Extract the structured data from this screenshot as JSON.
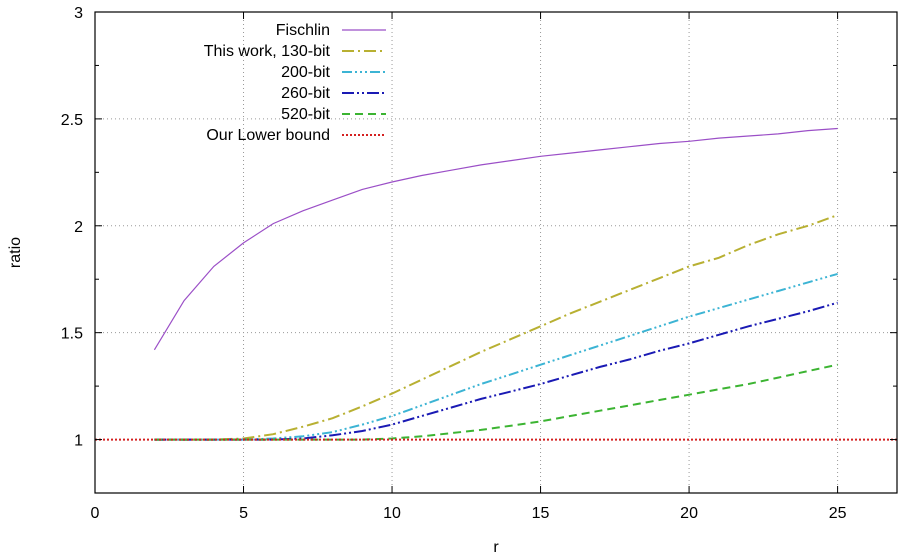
{
  "chart_data": {
    "type": "line",
    "xlabel": "r",
    "ylabel": "ratio",
    "xlim": [
      0,
      27
    ],
    "ylim": [
      0.75,
      3
    ],
    "xticks": [
      0,
      5,
      10,
      15,
      20,
      25
    ],
    "yticks": [
      1,
      1.5,
      2,
      2.5,
      3
    ],
    "grid": true,
    "legend_position": "top-left",
    "series": [
      {
        "name": "Fischlin",
        "color": "#9b4fc7",
        "dash": "solid",
        "x": [
          2,
          3,
          4,
          5,
          6,
          7,
          8,
          9,
          10,
          11,
          12,
          13,
          14,
          15,
          16,
          17,
          18,
          19,
          20,
          21,
          22,
          23,
          24,
          25
        ],
        "y": [
          1.42,
          1.65,
          1.81,
          1.92,
          2.01,
          2.07,
          2.12,
          2.17,
          2.205,
          2.235,
          2.26,
          2.285,
          2.305,
          2.325,
          2.34,
          2.355,
          2.37,
          2.385,
          2.395,
          2.41,
          2.42,
          2.43,
          2.445,
          2.455
        ]
      },
      {
        "name": "This work, 130-bit",
        "color": "#b8b032",
        "dash": "dashdot",
        "x": [
          2,
          3,
          4,
          5,
          6,
          7,
          8,
          9,
          10,
          11,
          12,
          13,
          14,
          15,
          16,
          17,
          18,
          19,
          20,
          21,
          22,
          23,
          24,
          25
        ],
        "y": [
          1.0,
          1.0,
          1.0,
          1.005,
          1.025,
          1.06,
          1.1,
          1.155,
          1.215,
          1.28,
          1.345,
          1.41,
          1.47,
          1.53,
          1.59,
          1.645,
          1.7,
          1.755,
          1.81,
          1.85,
          1.91,
          1.96,
          2.0,
          2.05
        ]
      },
      {
        "name": "200-bit",
        "color": "#3cb4d4",
        "dash": "dashdotdotdot",
        "x": [
          2,
          3,
          4,
          5,
          6,
          7,
          8,
          9,
          10,
          11,
          12,
          13,
          14,
          15,
          16,
          17,
          18,
          19,
          20,
          21,
          22,
          23,
          24,
          25
        ],
        "y": [
          1.0,
          1.0,
          1.0,
          1.0,
          1.005,
          1.015,
          1.035,
          1.07,
          1.11,
          1.16,
          1.21,
          1.26,
          1.305,
          1.35,
          1.395,
          1.44,
          1.485,
          1.53,
          1.575,
          1.615,
          1.655,
          1.695,
          1.735,
          1.775
        ]
      },
      {
        "name": "260-bit",
        "color": "#1a1ab4",
        "dash": "dashdotdot",
        "x": [
          2,
          3,
          4,
          5,
          6,
          7,
          8,
          9,
          10,
          11,
          12,
          13,
          14,
          15,
          16,
          17,
          18,
          19,
          20,
          21,
          22,
          23,
          24,
          25
        ],
        "y": [
          1.0,
          1.0,
          1.0,
          1.0,
          1.0,
          1.005,
          1.02,
          1.04,
          1.07,
          1.11,
          1.15,
          1.19,
          1.225,
          1.26,
          1.3,
          1.34,
          1.375,
          1.415,
          1.45,
          1.49,
          1.53,
          1.565,
          1.6,
          1.64
        ]
      },
      {
        "name": "520-bit",
        "color": "#3cb432",
        "dash": "dash",
        "x": [
          2,
          3,
          4,
          5,
          6,
          7,
          8,
          9,
          10,
          11,
          12,
          13,
          14,
          15,
          16,
          17,
          18,
          19,
          20,
          21,
          22,
          23,
          24,
          25
        ],
        "y": [
          1.0,
          1.0,
          1.0,
          1.0,
          1.0,
          1.0,
          1.0,
          1.0,
          1.005,
          1.015,
          1.03,
          1.045,
          1.065,
          1.085,
          1.11,
          1.135,
          1.16,
          1.185,
          1.21,
          1.235,
          1.26,
          1.29,
          1.32,
          1.35
        ]
      },
      {
        "name": "Our Lower bound",
        "color": "#d42020",
        "dash": "dot",
        "x": [
          0,
          27
        ],
        "y": [
          1.0,
          1.0
        ]
      }
    ]
  }
}
